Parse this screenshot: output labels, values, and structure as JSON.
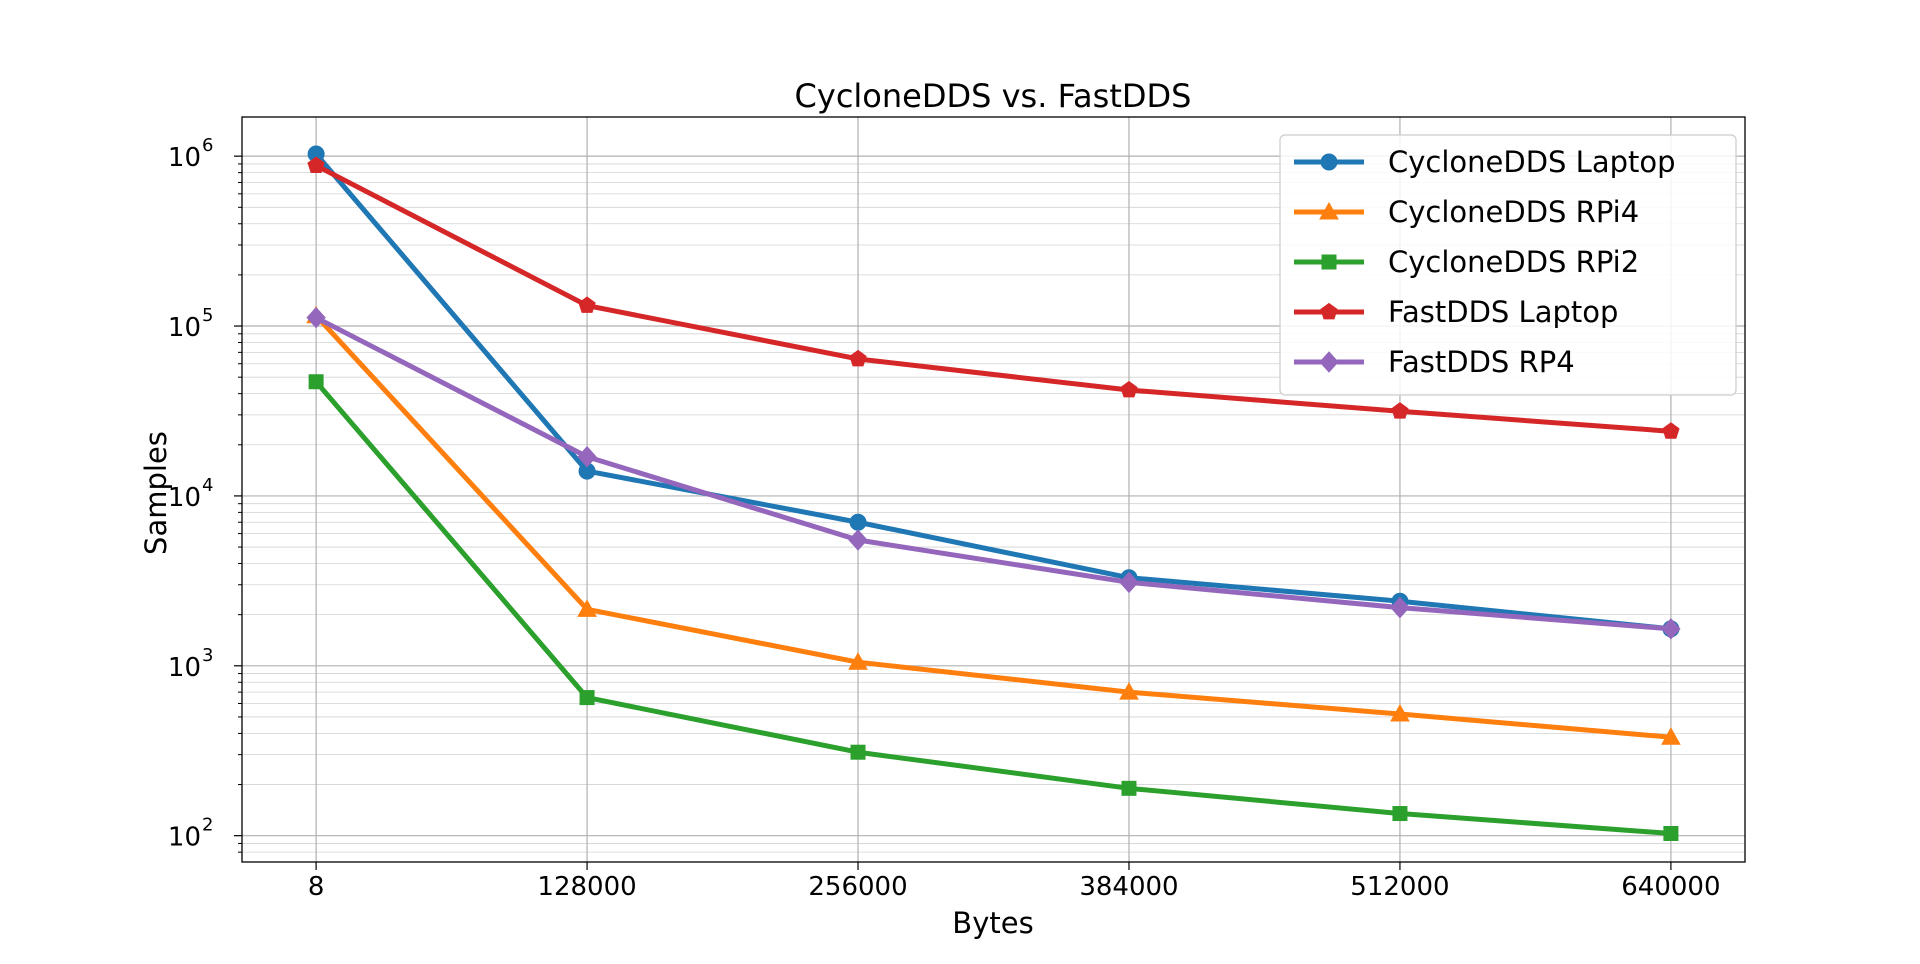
{
  "chart_data": {
    "type": "line",
    "title": "CycloneDDS vs. FastDDS",
    "xlabel": "Bytes",
    "ylabel": "Samples",
    "y_scale": "log",
    "ylim": [
      70,
      1700000
    ],
    "xlim": [
      -35000,
      675000
    ],
    "grid": "on (major and minor)",
    "legend_position": "upper right",
    "x": [
      8,
      128000,
      256000,
      384000,
      512000,
      640000
    ],
    "x_tick_labels": [
      "8",
      "128000",
      "256000",
      "384000",
      "512000",
      "640000"
    ],
    "y_ticks": [
      {
        "base": "10",
        "exp": "2",
        "value": 100
      },
      {
        "base": "10",
        "exp": "3",
        "value": 1000
      },
      {
        "base": "10",
        "exp": "4",
        "value": 10000
      },
      {
        "base": "10",
        "exp": "5",
        "value": 100000
      },
      {
        "base": "10",
        "exp": "6",
        "value": 1000000
      }
    ],
    "series": [
      {
        "name": "CycloneDDS Laptop",
        "color": "#1f77b4",
        "marker": "circle",
        "values": [
          1030000,
          14000,
          7000,
          3300,
          2400,
          1650
        ]
      },
      {
        "name": "CycloneDDS RPi4",
        "color": "#ff7f0e",
        "marker": "triangle",
        "values": [
          115000,
          2150,
          1050,
          700,
          520,
          380
        ]
      },
      {
        "name": "CycloneDDS RPi2",
        "color": "#2ca02c",
        "marker": "square",
        "values": [
          47000,
          650,
          310,
          190,
          135,
          103
        ]
      },
      {
        "name": "FastDDS Laptop",
        "color": "#d62728",
        "marker": "pentagon",
        "values": [
          880000,
          132000,
          64000,
          42000,
          31500,
          24000
        ]
      },
      {
        "name": "FastDDS RP4",
        "color": "#9467bd",
        "marker": "diamond",
        "values": [
          112000,
          17000,
          5500,
          3100,
          2200,
          1650
        ]
      }
    ]
  }
}
